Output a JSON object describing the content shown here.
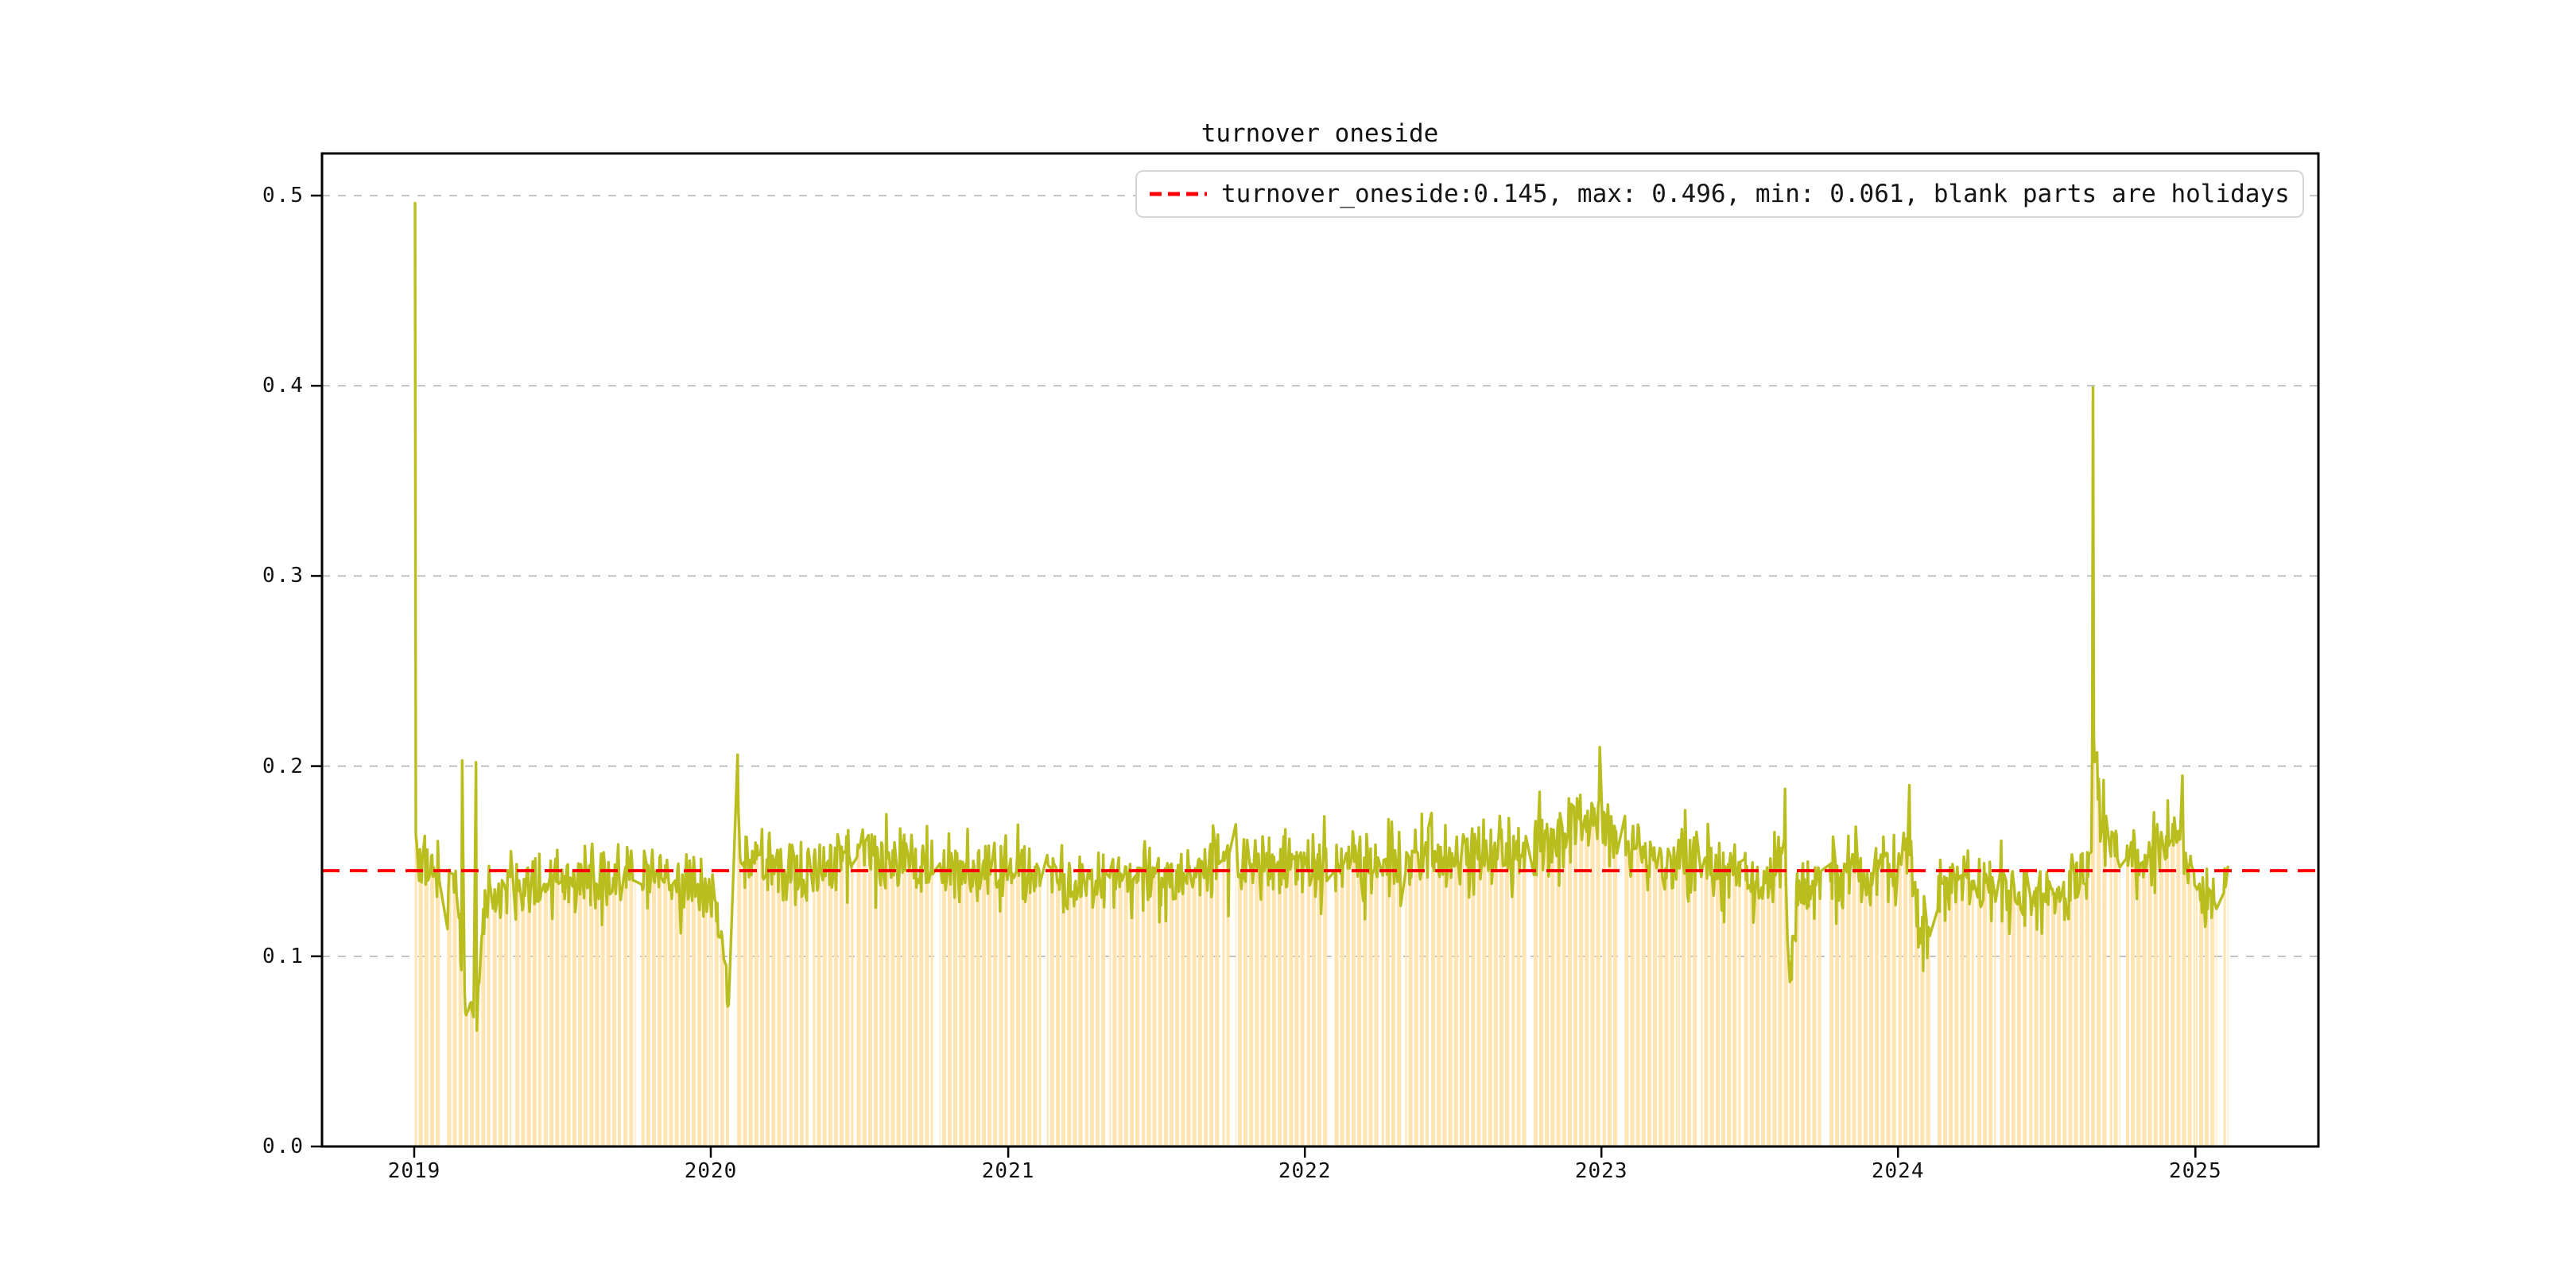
{
  "title": "turnover oneside",
  "legend": {
    "label": "turnover_oneside:0.145, max: 0.496, min: 0.061, blank parts are holidays",
    "marker_color": "#ff0000"
  },
  "chart_data": {
    "type": "line",
    "series_name": "turnover_oneside",
    "background_bars": true,
    "stats": {
      "mean": 0.145,
      "max": 0.496,
      "min": 0.061
    },
    "mean_line": 0.145,
    "x_axis": {
      "tick_labels": [
        "2019",
        "2020",
        "2021",
        "2022",
        "2023",
        "2024",
        "2025"
      ],
      "start_date": "2019-01-02",
      "end_date": "2025-02-10"
    },
    "y_axis": {
      "tick_labels": [
        "0.0",
        "0.1",
        "0.2",
        "0.3",
        "0.4",
        "0.5"
      ],
      "tick_values": [
        0.0,
        0.1,
        0.2,
        0.3,
        0.4,
        0.5
      ],
      "ylim": [
        0,
        0.522
      ],
      "grid": true
    },
    "colors": {
      "line": "#babd1e",
      "bars": "#ffe3ad",
      "mean": "#ff0000",
      "grid": "#b3b3b3",
      "frame": "#000000"
    },
    "envelope_anchors": [
      [
        "2019-01-02",
        0.152
      ],
      [
        "2019-01-18",
        0.147
      ],
      [
        "2019-02-01",
        0.143
      ],
      [
        "2019-02-22",
        0.138
      ],
      [
        "2019-02-27",
        0.105
      ],
      [
        "2019-03-06",
        0.069
      ],
      [
        "2019-03-11",
        0.076
      ],
      [
        "2019-03-15",
        0.068
      ],
      [
        "2019-03-20",
        0.075
      ],
      [
        "2019-03-26",
        0.122
      ],
      [
        "2019-04-15",
        0.134
      ],
      [
        "2019-06-03",
        0.137
      ],
      [
        "2019-08-01",
        0.14
      ],
      [
        "2019-11-01",
        0.142
      ],
      [
        "2020-01-02",
        0.134
      ],
      [
        "2020-01-17",
        0.11
      ],
      [
        "2020-01-23",
        0.076
      ],
      [
        "2020-02-04",
        0.158
      ],
      [
        "2020-03-02",
        0.15
      ],
      [
        "2020-05-06",
        0.143
      ],
      [
        "2020-07-08",
        0.157
      ],
      [
        "2020-08-17",
        0.149
      ],
      [
        "2020-11-02",
        0.144
      ],
      [
        "2021-02-10",
        0.146
      ],
      [
        "2021-04-01",
        0.138
      ],
      [
        "2021-07-01",
        0.143
      ],
      [
        "2021-09-01",
        0.147
      ],
      [
        "2021-12-01",
        0.146
      ],
      [
        "2022-03-01",
        0.15
      ],
      [
        "2022-06-01",
        0.151
      ],
      [
        "2022-09-01",
        0.154
      ],
      [
        "2022-10-10",
        0.159
      ],
      [
        "2022-11-14",
        0.165
      ],
      [
        "2022-12-23",
        0.173
      ],
      [
        "2023-01-03",
        0.167
      ],
      [
        "2023-02-01",
        0.157
      ],
      [
        "2023-04-03",
        0.151
      ],
      [
        "2023-06-01",
        0.144
      ],
      [
        "2023-07-17",
        0.139
      ],
      [
        "2023-08-14",
        0.152
      ],
      [
        "2023-08-18",
        0.112
      ],
      [
        "2023-08-22",
        0.093
      ],
      [
        "2023-08-29",
        0.131
      ],
      [
        "2023-10-09",
        0.142
      ],
      [
        "2024-01-02",
        0.147
      ],
      [
        "2024-01-16",
        0.155
      ],
      [
        "2024-01-26",
        0.118
      ],
      [
        "2024-02-06",
        0.112
      ],
      [
        "2024-02-19",
        0.134
      ],
      [
        "2024-04-01",
        0.14
      ],
      [
        "2024-06-03",
        0.13
      ],
      [
        "2024-07-15",
        0.128
      ],
      [
        "2024-08-22",
        0.142
      ],
      [
        "2024-08-26",
        0.16
      ],
      [
        "2024-08-27",
        0.19
      ],
      [
        "2024-08-29",
        0.21
      ],
      [
        "2024-09-04",
        0.175
      ],
      [
        "2024-09-18",
        0.158
      ],
      [
        "2024-10-08",
        0.15
      ],
      [
        "2024-11-05",
        0.15
      ],
      [
        "2024-12-13",
        0.16
      ],
      [
        "2024-12-20",
        0.15
      ],
      [
        "2025-01-13",
        0.128
      ],
      [
        "2025-02-10",
        0.142
      ]
    ],
    "special_points": [
      [
        "2019-01-02",
        0.496
      ],
      [
        "2019-03-01",
        0.203
      ],
      [
        "2019-03-18",
        0.202
      ],
      [
        "2019-03-19",
        0.061
      ],
      [
        "2020-02-03",
        0.206
      ],
      [
        "2022-12-30",
        0.21
      ],
      [
        "2023-08-15",
        0.188
      ],
      [
        "2023-08-21",
        0.0865
      ],
      [
        "2024-01-15",
        0.19
      ],
      [
        "2024-08-28",
        0.399
      ],
      [
        "2024-12-16",
        0.195
      ],
      [
        "2025-02-10",
        0.147
      ]
    ],
    "holidays": [
      [
        "2019-01-01",
        "2019-01-01"
      ],
      [
        "2019-02-04",
        "2019-02-08"
      ],
      [
        "2019-04-05",
        "2019-04-05"
      ],
      [
        "2019-05-01",
        "2019-05-03"
      ],
      [
        "2019-06-07",
        "2019-06-07"
      ],
      [
        "2019-09-13",
        "2019-09-13"
      ],
      [
        "2019-10-01",
        "2019-10-07"
      ],
      [
        "2020-01-01",
        "2020-01-01"
      ],
      [
        "2020-01-24",
        "2020-02-02"
      ],
      [
        "2020-04-06",
        "2020-04-06"
      ],
      [
        "2020-05-01",
        "2020-05-05"
      ],
      [
        "2020-06-25",
        "2020-06-26"
      ],
      [
        "2020-10-01",
        "2020-10-08"
      ],
      [
        "2021-01-01",
        "2021-01-01"
      ],
      [
        "2021-02-11",
        "2021-02-17"
      ],
      [
        "2021-04-05",
        "2021-04-05"
      ],
      [
        "2021-05-03",
        "2021-05-05"
      ],
      [
        "2021-06-14",
        "2021-06-14"
      ],
      [
        "2021-09-20",
        "2021-09-21"
      ],
      [
        "2021-10-01",
        "2021-10-07"
      ],
      [
        "2022-01-03",
        "2022-01-03"
      ],
      [
        "2022-01-31",
        "2022-02-04"
      ],
      [
        "2022-04-04",
        "2022-04-05"
      ],
      [
        "2022-05-02",
        "2022-05-04"
      ],
      [
        "2022-06-03",
        "2022-06-03"
      ],
      [
        "2022-09-12",
        "2022-09-12"
      ],
      [
        "2022-10-01",
        "2022-10-07"
      ],
      [
        "2023-01-02",
        "2023-01-02"
      ],
      [
        "2023-01-23",
        "2023-01-27"
      ],
      [
        "2023-04-05",
        "2023-04-05"
      ],
      [
        "2023-05-01",
        "2023-05-03"
      ],
      [
        "2023-06-22",
        "2023-06-23"
      ],
      [
        "2023-09-29",
        "2023-10-06"
      ],
      [
        "2024-01-01",
        "2024-01-01"
      ],
      [
        "2024-02-12",
        "2024-02-16"
      ],
      [
        "2024-04-04",
        "2024-04-05"
      ],
      [
        "2024-05-01",
        "2024-05-03"
      ],
      [
        "2024-06-10",
        "2024-06-10"
      ],
      [
        "2024-09-16",
        "2024-09-17"
      ],
      [
        "2024-10-01",
        "2024-10-07"
      ],
      [
        "2025-01-01",
        "2025-01-01"
      ],
      [
        "2025-01-28",
        "2025-02-04"
      ]
    ],
    "noise": {
      "seed": 421,
      "amp1": 0.0105,
      "amp2": 0.0155,
      "gate": 0.62
    }
  }
}
